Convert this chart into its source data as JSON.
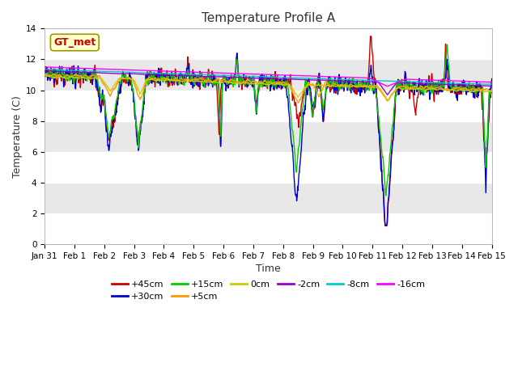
{
  "title": "Temperature Profile A",
  "xlabel": "Time",
  "ylabel": "Temperature (C)",
  "ylim": [
    0,
    14
  ],
  "xlim": [
    0,
    15
  ],
  "xtick_labels": [
    "Jan 31",
    "Feb 1",
    "Feb 2",
    "Feb 3",
    "Feb 4",
    "Feb 5",
    "Feb 6",
    "Feb 7",
    "Feb 8",
    "Feb 9",
    "Feb 10",
    "Feb 11",
    "Feb 12",
    "Feb 13",
    "Feb 14",
    "Feb 15"
  ],
  "series_labels": [
    "+45cm",
    "+30cm",
    "+15cm",
    "+5cm",
    "0cm",
    "-2cm",
    "-8cm",
    "-16cm"
  ],
  "series_colors": [
    "#cc0000",
    "#0000cc",
    "#00cc00",
    "#ff9900",
    "#cccc00",
    "#9900cc",
    "#00cccc",
    "#ff00ff"
  ],
  "annotation_text": "GT_met",
  "annotation_color": "#cc0000",
  "annotation_bg": "#ffffcc",
  "band_colors": [
    "#e8e8e8",
    "#d8d8d8"
  ],
  "title_fontsize": 11,
  "axis_fontsize": 9,
  "tick_fontsize": 7.5,
  "legend_fontsize": 8
}
